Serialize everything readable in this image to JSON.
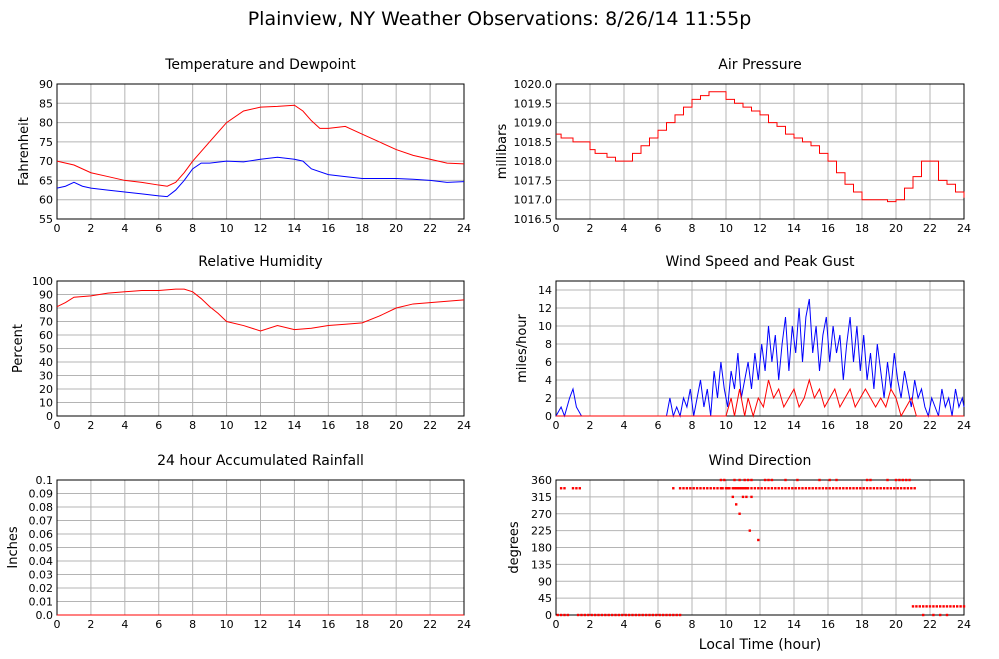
{
  "page_title": "Plainview, NY Weather Observations: 8/26/14 11:55p",
  "shared_xlabel": "Local Time (hour)",
  "colors": {
    "red": "#ff0000",
    "blue": "#0000ff",
    "grid": "#b4b4b4",
    "axis": "#000000"
  },
  "chart_data": [
    {
      "id": "temperature",
      "type": "line",
      "title": "Temperature and Dewpoint",
      "ylabel": "Fahrenheit",
      "xlabel": "",
      "xlim": [
        0,
        24
      ],
      "ylim": [
        55,
        90
      ],
      "xticks": [
        0,
        2,
        4,
        6,
        8,
        10,
        12,
        14,
        16,
        18,
        20,
        22,
        24
      ],
      "yticks": [
        "55",
        "60",
        "65",
        "70",
        "75",
        "80",
        "85",
        "90"
      ],
      "grid": true,
      "series": [
        {
          "color": "#ff0000",
          "x": [
            0,
            1,
            2,
            3,
            4,
            5,
            6,
            6.5,
            7,
            7.5,
            8,
            9,
            10,
            11,
            12,
            13,
            14,
            14.5,
            15,
            15.5,
            16,
            17,
            18,
            19,
            20,
            21,
            22,
            23,
            24
          ],
          "y": [
            70,
            69,
            67,
            66,
            65,
            64.5,
            63.8,
            63.5,
            64.5,
            67,
            70,
            75,
            80,
            83,
            84,
            84.2,
            84.5,
            83,
            80.5,
            78.5,
            78.5,
            79,
            77,
            75,
            73,
            71.5,
            70.5,
            69.5,
            69.3
          ]
        },
        {
          "color": "#0000ff",
          "x": [
            0,
            0.5,
            1,
            1.5,
            2,
            3,
            4,
            5,
            6,
            6.5,
            7,
            7.5,
            8,
            8.5,
            9,
            10,
            11,
            12,
            13,
            14,
            14.5,
            15,
            16,
            17,
            18,
            19,
            20,
            21,
            22,
            23,
            24
          ],
          "y": [
            63,
            63.5,
            64.5,
            63.5,
            63,
            62.5,
            62,
            61.5,
            61,
            60.8,
            62.5,
            65,
            68,
            69.5,
            69.5,
            70,
            69.8,
            70.5,
            71,
            70.5,
            70,
            68,
            66.5,
            66,
            65.5,
            65.5,
            65.5,
            65.3,
            65,
            64.5,
            64.7
          ]
        }
      ]
    },
    {
      "id": "pressure",
      "type": "line",
      "title": "Air Pressure",
      "ylabel": "millibars",
      "xlabel": "",
      "xlim": [
        0,
        24
      ],
      "ylim": [
        1016.5,
        1020
      ],
      "xticks": [
        0,
        2,
        4,
        6,
        8,
        10,
        12,
        14,
        16,
        18,
        20,
        22,
        24
      ],
      "yticks": [
        "1016.5",
        "1017.0",
        "1017.5",
        "1018.0",
        "1018.5",
        "1019.0",
        "1019.5",
        "1020.0"
      ],
      "grid": true,
      "series": [
        {
          "color": "#ff0000",
          "step": true,
          "x": [
            0,
            0.3,
            1,
            2,
            2.3,
            3,
            3.5,
            4,
            4.5,
            5,
            5.5,
            6,
            6.5,
            7,
            7.5,
            8,
            8.5,
            9,
            9.5,
            10,
            10.5,
            11,
            11.5,
            12,
            12.5,
            13,
            13.5,
            14,
            14.5,
            15,
            15.5,
            16,
            16.5,
            17,
            17.5,
            18,
            19,
            19.5,
            20,
            20.5,
            21,
            21.5,
            22,
            22.5,
            23,
            23.5,
            24
          ],
          "y": [
            1018.7,
            1018.6,
            1018.5,
            1018.3,
            1018.2,
            1018.1,
            1018.0,
            1018.0,
            1018.2,
            1018.4,
            1018.6,
            1018.8,
            1019.0,
            1019.2,
            1019.4,
            1019.6,
            1019.7,
            1019.8,
            1019.8,
            1019.6,
            1019.5,
            1019.4,
            1019.3,
            1019.2,
            1019.0,
            1018.9,
            1018.7,
            1018.6,
            1018.5,
            1018.4,
            1018.2,
            1018.0,
            1017.7,
            1017.4,
            1017.2,
            1017.0,
            1017.0,
            1016.95,
            1017.0,
            1017.3,
            1017.6,
            1018.0,
            1018.0,
            1017.5,
            1017.4,
            1017.2,
            1017.05
          ]
        }
      ]
    },
    {
      "id": "humidity",
      "type": "line",
      "title": "Relative Humidity",
      "ylabel": "Percent",
      "xlabel": "",
      "xlim": [
        0,
        24
      ],
      "ylim": [
        0,
        100
      ],
      "xticks": [
        0,
        2,
        4,
        6,
        8,
        10,
        12,
        14,
        16,
        18,
        20,
        22,
        24
      ],
      "yticks": [
        "0",
        "10",
        "20",
        "30",
        "40",
        "50",
        "60",
        "70",
        "80",
        "90",
        "100"
      ],
      "grid": true,
      "series": [
        {
          "color": "#ff0000",
          "x": [
            0,
            0.5,
            1,
            2,
            3,
            4,
            5,
            6,
            7,
            7.5,
            8,
            8.5,
            9,
            9.5,
            10,
            11,
            12,
            13,
            14,
            15,
            16,
            17,
            18,
            19,
            20,
            21,
            22,
            23,
            24
          ],
          "y": [
            81,
            84,
            88,
            89,
            91,
            92,
            93,
            93,
            94,
            94,
            92,
            87,
            81,
            76,
            70,
            67,
            63,
            67,
            64,
            65,
            67,
            68,
            69,
            74,
            80,
            83,
            84,
            85,
            86
          ]
        }
      ]
    },
    {
      "id": "wind",
      "type": "line",
      "title": "Wind Speed and Peak Gust",
      "ylabel": "miles/hour",
      "xlabel": "",
      "xlim": [
        0,
        24
      ],
      "ylim": [
        0,
        15
      ],
      "xticks": [
        0,
        2,
        4,
        6,
        8,
        10,
        12,
        14,
        16,
        18,
        20,
        22,
        24
      ],
      "yticks": [
        "0",
        "2",
        "4",
        "6",
        "8",
        "10",
        "12",
        "14"
      ],
      "grid": true,
      "series": [
        {
          "color": "#0000ff",
          "x": [
            0,
            0.3,
            0.5,
            0.8,
            1,
            1.2,
            1.5,
            6.5,
            6.7,
            6.9,
            7.1,
            7.3,
            7.5,
            7.7,
            7.9,
            8.1,
            8.3,
            8.5,
            8.7,
            8.9,
            9.1,
            9.3,
            9.5,
            9.7,
            9.9,
            10.1,
            10.3,
            10.5,
            10.7,
            10.9,
            11.1,
            11.3,
            11.5,
            11.7,
            11.9,
            12.1,
            12.3,
            12.5,
            12.7,
            12.9,
            13.1,
            13.3,
            13.5,
            13.7,
            13.9,
            14.1,
            14.3,
            14.5,
            14.7,
            14.9,
            15.1,
            15.3,
            15.5,
            15.7,
            15.9,
            16.1,
            16.3,
            16.5,
            16.7,
            16.9,
            17.1,
            17.3,
            17.5,
            17.7,
            17.9,
            18.1,
            18.3,
            18.5,
            18.7,
            18.9,
            19.1,
            19.3,
            19.5,
            19.7,
            19.9,
            20.1,
            20.3,
            20.5,
            20.7,
            20.9,
            21.1,
            21.3,
            21.5,
            21.7,
            21.9,
            22.1,
            22.3,
            22.5,
            22.7,
            22.9,
            23.1,
            23.3,
            23.5,
            23.7,
            23.9,
            24
          ],
          "y": [
            0,
            1,
            0,
            2,
            3,
            1,
            0,
            0,
            2,
            0,
            1,
            0,
            2,
            1,
            3,
            0,
            2,
            4,
            1,
            3,
            0,
            5,
            2,
            6,
            3,
            1,
            5,
            3,
            7,
            2,
            4,
            6,
            3,
            7,
            4,
            8,
            5,
            10,
            6,
            9,
            4,
            8,
            11,
            5,
            10,
            7,
            12,
            6,
            11,
            13,
            7,
            10,
            5,
            9,
            11,
            6,
            10,
            7,
            9,
            4,
            8,
            11,
            6,
            10,
            5,
            9,
            4,
            7,
            3,
            8,
            5,
            2,
            6,
            3,
            7,
            4,
            2,
            5,
            3,
            1,
            4,
            2,
            3,
            1,
            0,
            2,
            1,
            0,
            3,
            1,
            2,
            0,
            3,
            1,
            2,
            1
          ]
        },
        {
          "color": "#ff0000",
          "x": [
            0,
            10,
            10.3,
            10.5,
            10.8,
            11.1,
            11.3,
            11.6,
            11.9,
            12.2,
            12.5,
            12.8,
            13.1,
            13.4,
            13.7,
            14,
            14.3,
            14.6,
            14.9,
            15.2,
            15.5,
            15.8,
            16.1,
            16.4,
            16.7,
            17,
            17.3,
            17.6,
            17.9,
            18.2,
            18.5,
            18.8,
            19.1,
            19.4,
            19.7,
            20,
            20.3,
            20.6,
            20.9,
            21.2,
            24
          ],
          "y": [
            0,
            0,
            2,
            0,
            3,
            0,
            2,
            0,
            2,
            1,
            4,
            2,
            3,
            1,
            2,
            3,
            1,
            2,
            4,
            2,
            3,
            1,
            2,
            3,
            1,
            2,
            3,
            1,
            2,
            3,
            2,
            1,
            2,
            1,
            3,
            2,
            0,
            1,
            2,
            0,
            0
          ]
        }
      ]
    },
    {
      "id": "rainfall",
      "type": "line",
      "title": "24 hour Accumulated Rainfall",
      "ylabel": "Inches",
      "xlabel": "",
      "xlim": [
        0,
        24
      ],
      "ylim": [
        0,
        0.1
      ],
      "xticks": [
        0,
        2,
        4,
        6,
        8,
        10,
        12,
        14,
        16,
        18,
        20,
        22,
        24
      ],
      "yticks": [
        "0.0",
        "0.01",
        "0.02",
        "0.03",
        "0.04",
        "0.05",
        "0.06",
        "0.07",
        "0.08",
        "0.09",
        "0.1"
      ],
      "grid": true,
      "series": [
        {
          "color": "#ff0000",
          "x": [
            0,
            24
          ],
          "y": [
            0,
            0
          ]
        }
      ]
    },
    {
      "id": "direction",
      "type": "scatter",
      "title": "Wind Direction",
      "ylabel": "degrees",
      "xlabel": "Local Time (hour)",
      "xlim": [
        0,
        24
      ],
      "ylim": [
        0,
        360
      ],
      "xticks": [
        0,
        2,
        4,
        6,
        8,
        10,
        12,
        14,
        16,
        18,
        20,
        22,
        24
      ],
      "yticks": [
        "0",
        "45",
        "90",
        "135",
        "180",
        "225",
        "270",
        "315",
        "360"
      ],
      "grid": true,
      "series": [
        {
          "color": "#ff0000",
          "x": [
            0.1,
            0.3,
            0.5,
            0.7,
            1.3,
            1.5,
            1.7,
            1.9,
            2.1,
            2.3,
            2.5,
            2.7,
            2.9,
            3.1,
            3.3,
            3.5,
            3.7,
            3.9,
            4.1,
            4.3,
            4.5,
            4.7,
            4.9,
            5.1,
            5.3,
            5.5,
            5.7,
            5.9,
            6.1,
            6.3,
            6.5,
            6.7,
            6.9,
            7.1,
            7.3,
            0.3,
            0.5,
            1.0,
            1.2,
            1.4,
            6.9,
            7.3,
            7.5,
            7.7,
            7.9,
            8.1,
            8.3,
            8.5,
            8.7,
            8.9,
            9.1,
            9.3,
            9.5,
            9.7,
            9.8,
            10.0,
            10.1,
            10.2,
            10.4,
            10.5,
            10.6,
            10.7,
            10.8,
            10.9,
            11.0,
            11.1,
            11.2,
            11.3,
            11.5,
            11.7,
            11.9,
            12.1,
            12.3,
            12.5,
            12.7,
            12.9,
            13.1,
            13.3,
            13.5,
            13.7,
            13.9,
            14.1,
            14.3,
            14.5,
            14.7,
            14.9,
            15.1,
            15.3,
            15.5,
            15.7,
            15.9,
            16.1,
            16.3,
            16.5,
            16.7,
            16.9,
            17.1,
            17.3,
            17.5,
            17.7,
            17.9,
            18.1,
            18.3,
            18.5,
            18.7,
            18.9,
            19.1,
            19.3,
            19.5,
            19.7,
            19.9,
            20.1,
            20.3,
            20.5,
            20.7,
            20.9,
            21.1,
            9.7,
            9.9,
            10.5,
            10.8,
            11.1,
            11.3,
            11.5,
            12.3,
            12.5,
            12.7,
            13.5,
            14.2,
            15.5,
            16.1,
            16.5,
            18.3,
            18.5,
            19.5,
            20.0,
            20.2,
            20.4,
            20.6,
            20.8,
            10.4,
            10.6,
            10.8,
            11.0,
            11.2,
            11.4,
            11.5,
            11.9,
            21.0,
            21.2,
            21.4,
            21.6,
            21.8,
            22.0,
            22.2,
            22.4,
            22.6,
            22.8,
            23.0,
            23.2,
            23.4,
            23.6,
            23.8,
            24.0,
            21.6,
            22.2,
            22.6,
            23.0
          ],
          "y": [
            0,
            0,
            0,
            0,
            0,
            0,
            0,
            0,
            0,
            0,
            0,
            0,
            0,
            0,
            0,
            0,
            0,
            0,
            0,
            0,
            0,
            0,
            0,
            0,
            0,
            0,
            0,
            0,
            0,
            0,
            0,
            0,
            0,
            0,
            0,
            338,
            338,
            338,
            338,
            338,
            338,
            338,
            338,
            338,
            338,
            338,
            338,
            338,
            338,
            338,
            338,
            338,
            338,
            338,
            338,
            338,
            338,
            338,
            338,
            338,
            338,
            338,
            338,
            338,
            338,
            338,
            338,
            338,
            338,
            338,
            338,
            338,
            338,
            338,
            338,
            338,
            338,
            338,
            338,
            338,
            338,
            338,
            338,
            338,
            338,
            338,
            338,
            338,
            338,
            338,
            338,
            338,
            338,
            338,
            338,
            338,
            338,
            338,
            338,
            338,
            338,
            338,
            338,
            338,
            338,
            338,
            338,
            338,
            338,
            338,
            338,
            338,
            338,
            338,
            338,
            338,
            338,
            360,
            360,
            360,
            360,
            360,
            360,
            360,
            360,
            360,
            360,
            360,
            360,
            360,
            360,
            360,
            360,
            360,
            360,
            360,
            360,
            360,
            360,
            360,
            315,
            295,
            270,
            315,
            315,
            225,
            315,
            200,
            23,
            23,
            23,
            23,
            23,
            23,
            23,
            23,
            23,
            23,
            23,
            23,
            23,
            23,
            23,
            23,
            0,
            0,
            0,
            0
          ]
        }
      ]
    }
  ]
}
